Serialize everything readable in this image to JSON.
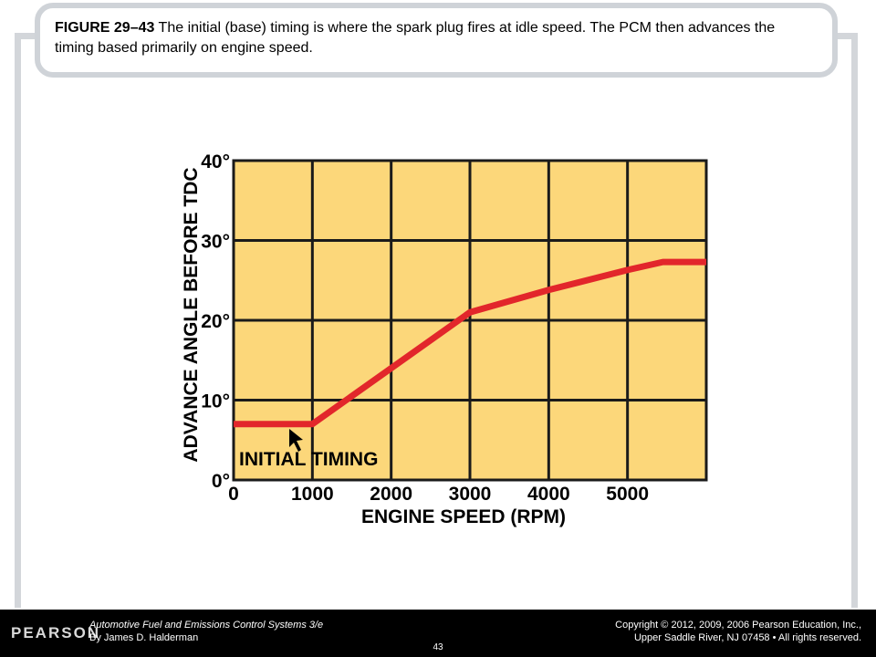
{
  "caption": {
    "figure_label": "FIGURE 29–43",
    "text": " The initial (base) timing is where the spark plug fires at idle speed. The PCM then advances the timing based primarily on engine speed."
  },
  "chart_data": {
    "type": "line",
    "xlabel": "ENGINE SPEED (RPM)",
    "ylabel": "ADVANCE ANGLE BEFORE TDC",
    "xlim": [
      0,
      6000
    ],
    "ylim": [
      0,
      40
    ],
    "x_ticks": [
      {
        "value": 0,
        "label": "0"
      },
      {
        "value": 1000,
        "label": "1000"
      },
      {
        "value": 2000,
        "label": "2000"
      },
      {
        "value": 3000,
        "label": "3000"
      },
      {
        "value": 4000,
        "label": "4000"
      },
      {
        "value": 5000,
        "label": "5000"
      }
    ],
    "y_ticks": [
      {
        "value": 0,
        "label": "0°"
      },
      {
        "value": 10,
        "label": "10°"
      },
      {
        "value": 20,
        "label": "20°"
      },
      {
        "value": 30,
        "label": "30°"
      },
      {
        "value": 40,
        "label": "40°"
      }
    ],
    "grid": true,
    "series": [
      {
        "x": [
          0,
          1000,
          2000,
          3000,
          4000,
          5000,
          5450,
          6000
        ],
        "y": [
          7,
          7,
          14,
          21,
          23.8,
          26.3,
          27.3,
          27.3
        ]
      }
    ],
    "annotations": [
      {
        "text": "INITIAL TIMING",
        "x": 1000,
        "y": 7
      }
    ],
    "colors": {
      "plot_background": "#fcd77a",
      "line": "#e2262b",
      "grid": "#1a1a1a"
    }
  },
  "footer": {
    "logo": "PEARSON",
    "book_title": "Automotive Fuel and Emissions Control Systems 3/e",
    "author": "By James D. Halderman",
    "copyright_line1": "Copyright © 2012, 2009, 2006 Pearson Education, Inc.,",
    "copyright_line2": "Upper Saddle River, NJ 07458 • All rights reserved.",
    "page_number": "43"
  }
}
